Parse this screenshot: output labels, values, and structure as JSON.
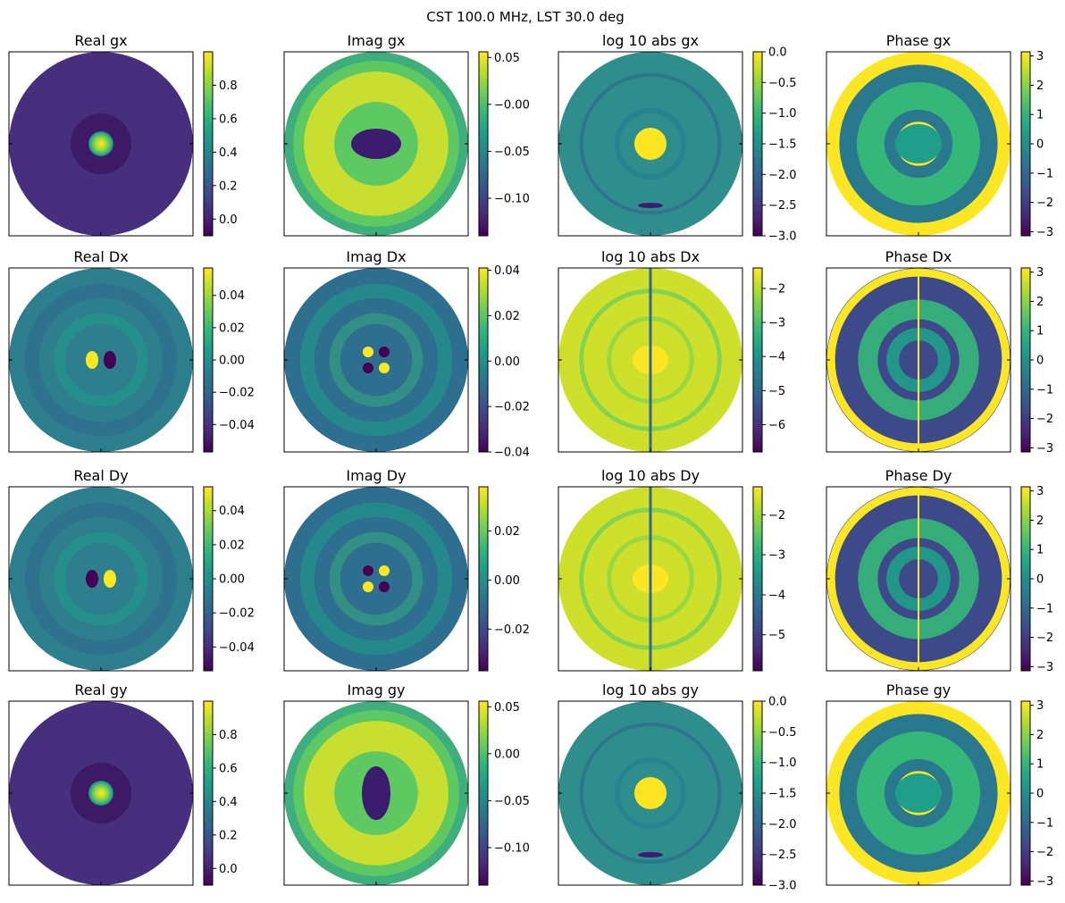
{
  "figure": {
    "suptitle": "CST 100.0 MHz, LST 30.0 deg"
  },
  "chart_data": [
    {
      "type": "heatmap",
      "title": "Real gx",
      "pattern": "central-peak",
      "colormap": "viridis",
      "colorbar": {
        "min": -0.1,
        "max": 1.0,
        "ticks": [
          0.8,
          0.6,
          0.4,
          0.2,
          0.0
        ],
        "tick_labels": [
          "0.8",
          "0.6",
          "0.4",
          "0.2",
          "0.0"
        ]
      }
    },
    {
      "type": "heatmap",
      "title": "Imag gx",
      "pattern": "ring-with-horizontal-dip",
      "colormap": "viridis",
      "colorbar": {
        "min": -0.14,
        "max": 0.056,
        "ticks": [
          0.05,
          0.0,
          -0.05,
          -0.1
        ],
        "tick_labels": [
          "0.05",
          "−0.00",
          "−0.05",
          "−0.10"
        ]
      }
    },
    {
      "type": "heatmap",
      "title": "log 10 abs gx",
      "pattern": "log-abs",
      "colormap": "viridis",
      "colorbar": {
        "min": -3.0,
        "max": 0.0,
        "ticks": [
          0.0,
          -0.5,
          -1.0,
          -1.5,
          -2.0,
          -2.5,
          -3.0
        ],
        "tick_labels": [
          "0.0",
          "−0.5",
          "−1.0",
          "−1.5",
          "−2.0",
          "−2.5",
          "−3.0"
        ]
      }
    },
    {
      "type": "heatmap",
      "title": "Phase gx",
      "pattern": "phase",
      "colormap": "viridis",
      "colorbar": {
        "min": -3.14159,
        "max": 3.14159,
        "ticks": [
          3,
          2,
          1,
          0,
          -1,
          -2,
          -3
        ],
        "tick_labels": [
          "3",
          "2",
          "1",
          "0",
          "−1",
          "−2",
          "−3"
        ]
      }
    },
    {
      "type": "heatmap",
      "title": "Real Dx",
      "pattern": "dipole-horizontal",
      "colormap": "viridis",
      "colorbar": {
        "min": -0.057,
        "max": 0.057,
        "ticks": [
          0.04,
          0.02,
          0.0,
          -0.02,
          -0.04
        ],
        "tick_labels": [
          "0.04",
          "0.02",
          "0.00",
          "−0.02",
          "−0.04"
        ]
      }
    },
    {
      "type": "heatmap",
      "title": "Imag Dx",
      "pattern": "quadrupole",
      "colormap": "viridis",
      "colorbar": {
        "min": -0.04,
        "max": 0.041,
        "ticks": [
          0.04,
          0.02,
          0.0,
          -0.02,
          -0.04
        ],
        "tick_labels": [
          "0.04",
          "0.02",
          "0.00",
          "−0.02",
          "−0.04"
        ]
      }
    },
    {
      "type": "heatmap",
      "title": "log 10 abs Dx",
      "pattern": "log-abs-leak",
      "colormap": "viridis",
      "colorbar": {
        "min": -6.8,
        "max": -1.4,
        "ticks": [
          -2,
          -3,
          -4,
          -5,
          -6
        ],
        "tick_labels": [
          "−2",
          "−3",
          "−4",
          "−5",
          "−6"
        ]
      }
    },
    {
      "type": "heatmap",
      "title": "Phase Dx",
      "pattern": "phase-split",
      "colormap": "viridis",
      "colorbar": {
        "min": -3.14159,
        "max": 3.14159,
        "ticks": [
          3,
          2,
          1,
          0,
          -1,
          -2,
          -3
        ],
        "tick_labels": [
          "3",
          "2",
          "1",
          "0",
          "−1",
          "−2",
          "−3"
        ]
      }
    },
    {
      "type": "heatmap",
      "title": "Real Dy",
      "pattern": "dipole-horizontal-flipped",
      "colormap": "viridis",
      "colorbar": {
        "min": -0.054,
        "max": 0.054,
        "ticks": [
          0.04,
          0.02,
          0.0,
          -0.02,
          -0.04
        ],
        "tick_labels": [
          "0.04",
          "0.02",
          "0.00",
          "−0.02",
          "−0.04"
        ]
      }
    },
    {
      "type": "heatmap",
      "title": "Imag Dy",
      "pattern": "quadrupole-flipped",
      "colormap": "viridis",
      "colorbar": {
        "min": -0.037,
        "max": 0.038,
        "ticks": [
          0.02,
          0.0,
          -0.02
        ],
        "tick_labels": [
          "0.02",
          "0.00",
          "−0.02"
        ]
      }
    },
    {
      "type": "heatmap",
      "title": "log 10 abs Dy",
      "pattern": "log-abs-leak",
      "colormap": "viridis",
      "colorbar": {
        "min": -5.9,
        "max": -1.3,
        "ticks": [
          -2,
          -3,
          -4,
          -5
        ],
        "tick_labels": [
          "−2",
          "−3",
          "−4",
          "−5"
        ]
      }
    },
    {
      "type": "heatmap",
      "title": "Phase Dy",
      "pattern": "phase-split-flipped",
      "colormap": "viridis",
      "colorbar": {
        "min": -3.14159,
        "max": 3.14159,
        "ticks": [
          3,
          2,
          1,
          0,
          -1,
          -2,
          -3
        ],
        "tick_labels": [
          "3",
          "2",
          "1",
          "0",
          "−1",
          "−2",
          "−3"
        ]
      }
    },
    {
      "type": "heatmap",
      "title": "Real gy",
      "pattern": "central-peak",
      "colormap": "viridis",
      "colorbar": {
        "min": -0.1,
        "max": 1.0,
        "ticks": [
          0.8,
          0.6,
          0.4,
          0.2,
          0.0
        ],
        "tick_labels": [
          "0.8",
          "0.6",
          "0.4",
          "0.2",
          "0.0"
        ]
      }
    },
    {
      "type": "heatmap",
      "title": "Imag gy",
      "pattern": "ring-with-vertical-dip",
      "colormap": "viridis",
      "colorbar": {
        "min": -0.14,
        "max": 0.056,
        "ticks": [
          0.05,
          0.0,
          -0.05,
          -0.1
        ],
        "tick_labels": [
          "0.05",
          "0.00",
          "−0.05",
          "−0.10"
        ]
      }
    },
    {
      "type": "heatmap",
      "title": "log 10 abs gy",
      "pattern": "log-abs",
      "colormap": "viridis",
      "colorbar": {
        "min": -3.0,
        "max": 0.0,
        "ticks": [
          0.0,
          -0.5,
          -1.0,
          -1.5,
          -2.0,
          -2.5,
          -3.0
        ],
        "tick_labels": [
          "0.0",
          "−0.5",
          "−1.0",
          "−1.5",
          "−2.0",
          "−2.5",
          "−3.0"
        ]
      }
    },
    {
      "type": "heatmap",
      "title": "Phase gy",
      "pattern": "phase",
      "colormap": "viridis",
      "colorbar": {
        "min": -3.14159,
        "max": 3.14159,
        "ticks": [
          3,
          2,
          1,
          0,
          -1,
          -2,
          -3
        ],
        "tick_labels": [
          "3",
          "2",
          "1",
          "0",
          "−1",
          "−2",
          "−3"
        ]
      }
    }
  ]
}
